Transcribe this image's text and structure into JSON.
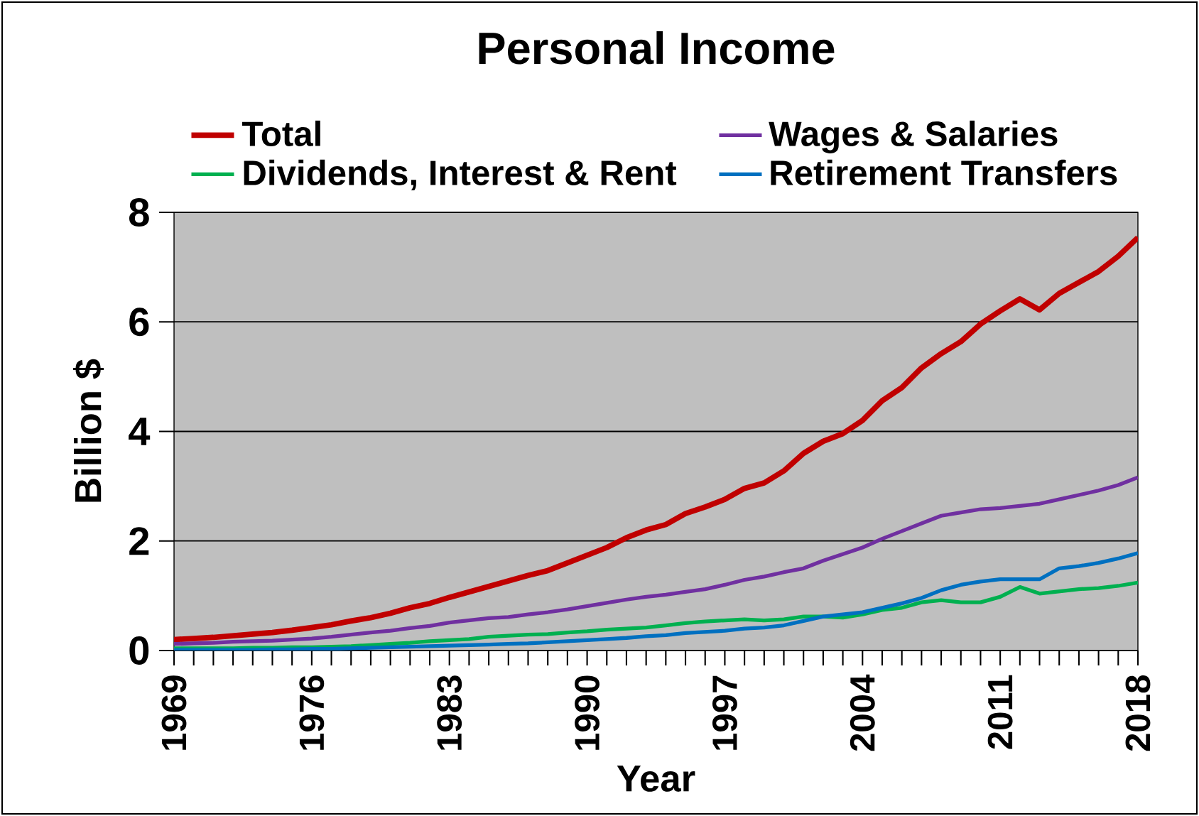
{
  "chart_data": {
    "type": "line",
    "title": "Personal Income",
    "xlabel": "Year",
    "ylabel": "Billion $",
    "x": [
      1969,
      1970,
      1971,
      1972,
      1973,
      1974,
      1975,
      1976,
      1977,
      1978,
      1979,
      1980,
      1981,
      1982,
      1983,
      1984,
      1985,
      1986,
      1987,
      1988,
      1989,
      1990,
      1991,
      1992,
      1993,
      1994,
      1995,
      1996,
      1997,
      1998,
      1999,
      2000,
      2001,
      2002,
      2003,
      2004,
      2005,
      2006,
      2007,
      2008,
      2009,
      2010,
      2011,
      2012,
      2013,
      2014,
      2015,
      2016,
      2017,
      2018
    ],
    "series": [
      {
        "name": "Total",
        "color": "#c00000",
        "values": [
          0.2,
          0.22,
          0.24,
          0.27,
          0.3,
          0.33,
          0.37,
          0.42,
          0.47,
          0.54,
          0.6,
          0.68,
          0.78,
          0.86,
          0.97,
          1.07,
          1.17,
          1.27,
          1.37,
          1.46,
          1.6,
          1.74,
          1.88,
          2.06,
          2.2,
          2.3,
          2.5,
          2.62,
          2.76,
          2.96,
          3.06,
          3.28,
          3.6,
          3.82,
          3.96,
          4.2,
          4.56,
          4.8,
          5.16,
          5.42,
          5.64,
          5.96,
          6.2,
          6.42,
          6.22,
          6.52,
          6.72,
          6.92,
          7.2,
          7.54
        ]
      },
      {
        "name": "Wages & Salaries",
        "color": "#7030a0",
        "values": [
          0.12,
          0.13,
          0.14,
          0.16,
          0.17,
          0.18,
          0.2,
          0.22,
          0.25,
          0.29,
          0.33,
          0.36,
          0.41,
          0.45,
          0.51,
          0.55,
          0.59,
          0.61,
          0.66,
          0.7,
          0.75,
          0.81,
          0.87,
          0.93,
          0.98,
          1.02,
          1.07,
          1.12,
          1.2,
          1.29,
          1.35,
          1.43,
          1.5,
          1.64,
          1.76,
          1.88,
          2.04,
          2.18,
          2.32,
          2.46,
          2.52,
          2.58,
          2.6,
          2.64,
          2.68,
          2.76,
          2.84,
          2.92,
          3.02,
          3.16
        ]
      },
      {
        "name": "Dividends, Interest & Rent",
        "color": "#00b050",
        "values": [
          0.04,
          0.04,
          0.04,
          0.04,
          0.05,
          0.05,
          0.06,
          0.06,
          0.07,
          0.08,
          0.1,
          0.12,
          0.14,
          0.17,
          0.19,
          0.21,
          0.25,
          0.27,
          0.29,
          0.3,
          0.33,
          0.35,
          0.38,
          0.4,
          0.42,
          0.46,
          0.5,
          0.53,
          0.55,
          0.57,
          0.55,
          0.57,
          0.62,
          0.62,
          0.6,
          0.66,
          0.74,
          0.78,
          0.88,
          0.92,
          0.88,
          0.88,
          0.98,
          1.16,
          1.04,
          1.08,
          1.12,
          1.14,
          1.18,
          1.24
        ]
      },
      {
        "name": "Retirement Transfers",
        "color": "#0070c0",
        "values": [
          0.01,
          0.01,
          0.01,
          0.01,
          0.01,
          0.02,
          0.02,
          0.03,
          0.03,
          0.04,
          0.05,
          0.06,
          0.07,
          0.08,
          0.09,
          0.1,
          0.11,
          0.12,
          0.13,
          0.15,
          0.17,
          0.19,
          0.21,
          0.23,
          0.26,
          0.28,
          0.32,
          0.34,
          0.36,
          0.4,
          0.42,
          0.46,
          0.54,
          0.62,
          0.66,
          0.7,
          0.78,
          0.86,
          0.96,
          1.1,
          1.2,
          1.26,
          1.3,
          1.3,
          1.3,
          1.5,
          1.54,
          1.6,
          1.68,
          1.78
        ]
      }
    ],
    "xlim": [
      1969,
      2018
    ],
    "xticks": [
      1969,
      1976,
      1983,
      1990,
      1997,
      2004,
      2011,
      2018
    ],
    "ylim": [
      0,
      8
    ],
    "yticks": [
      0,
      2,
      4,
      6,
      8
    ],
    "grid": "y",
    "legend": "top",
    "marker": "none",
    "line_style": "solid"
  }
}
